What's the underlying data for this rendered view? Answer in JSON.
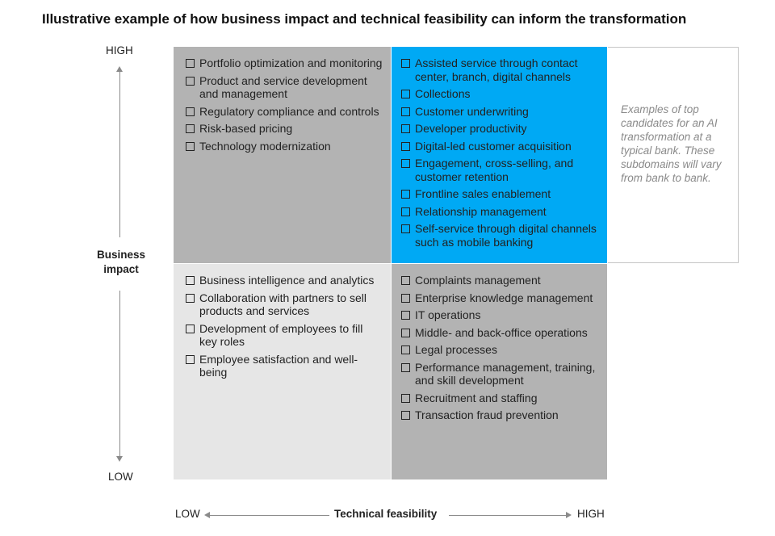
{
  "title": "Illustrative example of how business impact and technical feasibility can inform the transformation",
  "y_axis": {
    "label": "Business impact",
    "high": "HIGH",
    "low": "LOW"
  },
  "x_axis": {
    "label": "Technical feasibility",
    "low": "LOW",
    "high": "HIGH"
  },
  "quadrants": {
    "top_left": {
      "color": "#b3b3b3",
      "items": [
        "Portfolio optimization and monitoring",
        "Product and service development and management",
        "Regulatory compliance and controls",
        "Risk-based pricing",
        "Technology modernization"
      ]
    },
    "top_right": {
      "color": "#00a9f4",
      "items": [
        "Assisted service through contact center, branch, digital channels",
        "Collections",
        "Customer underwriting",
        "Developer productivity",
        "Digital-led customer acquisition",
        "Engagement, cross-selling, and customer retention",
        "Frontline sales enablement",
        "Relationship management",
        "Self-service through digital channels such as mobile banking"
      ]
    },
    "bottom_left": {
      "color": "#e6e6e6",
      "items": [
        "Business intelligence and analytics",
        "Collaboration with partners to sell products and services",
        "Development of employees to fill key roles",
        "Employee satisfaction and well-being"
      ]
    },
    "bottom_right": {
      "color": "#b3b3b3",
      "items": [
        "Complaints management",
        "Enterprise knowledge management",
        "IT operations",
        "Middle- and back-office operations",
        "Legal processes",
        "Performance management, training, and skill development",
        "Recruitment and staffing",
        "Transaction fraud prevention"
      ]
    }
  },
  "note": "Examples of top candidates for an AI transformation at a typical bank. These subdomains will vary from bank to bank."
}
